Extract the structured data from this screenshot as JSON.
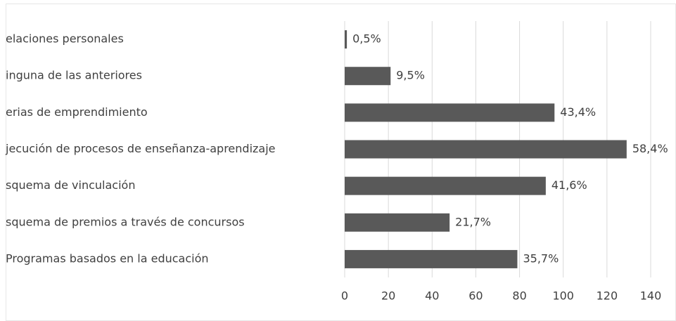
{
  "chart_data": {
    "type": "bar",
    "orientation": "horizontal",
    "categories": [
      "elaciones personales",
      "inguna de las anteriores",
      "erias de emprendimiento",
      "jecución de procesos de enseñanza-aprendizaje",
      "squema de vinculación",
      "squema de premios a través de concursos",
      "Programas basados en la educación"
    ],
    "values": [
      1,
      21,
      96,
      129,
      92,
      48,
      79
    ],
    "value_labels": [
      "0,5%",
      "9,5%",
      "43,4%",
      "58,4%",
      "41,6%",
      "21,7%",
      "35,7%"
    ],
    "color": "#595959",
    "xlim": [
      0,
      140
    ],
    "xticks": [
      0,
      20,
      40,
      60,
      80,
      100,
      120,
      140
    ],
    "grid": true
  }
}
